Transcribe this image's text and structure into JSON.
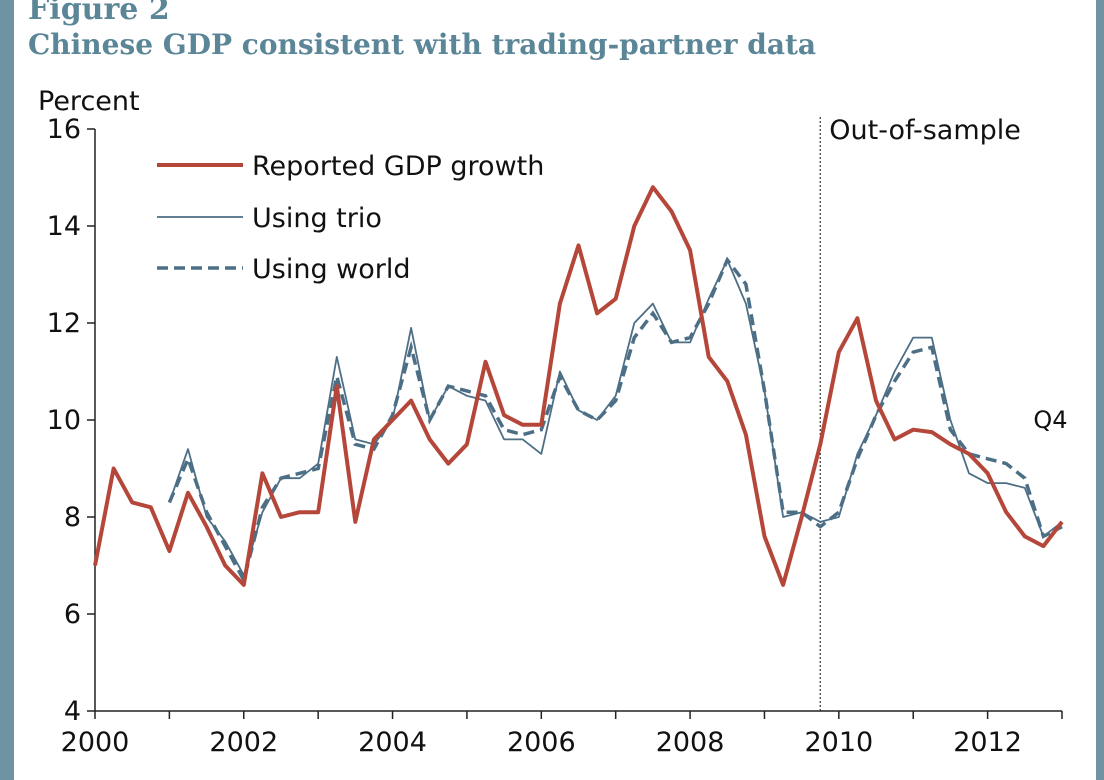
{
  "figure": {
    "label": "Figure 2",
    "title": "Chinese GDP consistent with trading-partner data"
  },
  "colors": {
    "frame": "#6f93a3",
    "title": "#5b8697",
    "reported": "#b5473a",
    "trio": "#4d6f86",
    "world": "#4d6f86"
  },
  "chart_data": {
    "type": "line",
    "title": "",
    "xlabel": "",
    "ylabel": "Percent",
    "ylim": [
      4,
      16
    ],
    "yticks": [
      4,
      6,
      8,
      10,
      12,
      14,
      16
    ],
    "xlim": [
      2000,
      2013
    ],
    "xticks": [
      2000,
      2002,
      2004,
      2006,
      2008,
      2010,
      2012
    ],
    "grid": false,
    "legend_position": "top-left",
    "annotations": [
      {
        "text": "Out-of-sample",
        "x": 2009.75
      },
      {
        "text": "Q4",
        "x": 2012.75,
        "y": 10
      }
    ],
    "out_of_sample_start": 2009.75,
    "series": [
      {
        "name": "Reported GDP growth",
        "style": "solid-thick",
        "x": [
          2000.0,
          2000.25,
          2000.5,
          2000.75,
          2001.0,
          2001.25,
          2001.5,
          2001.75,
          2002.0,
          2002.25,
          2002.5,
          2002.75,
          2003.0,
          2003.25,
          2003.5,
          2003.75,
          2004.0,
          2004.25,
          2004.5,
          2004.75,
          2005.0,
          2005.25,
          2005.5,
          2005.75,
          2006.0,
          2006.25,
          2006.5,
          2006.75,
          2007.0,
          2007.25,
          2007.5,
          2007.75,
          2008.0,
          2008.25,
          2008.5,
          2008.75,
          2009.0,
          2009.25,
          2009.5,
          2009.75,
          2010.0,
          2010.25,
          2010.5,
          2010.75,
          2011.0,
          2011.25,
          2011.5,
          2011.75,
          2012.0,
          2012.25,
          2012.5,
          2012.75,
          2013.0
        ],
        "values": [
          7.0,
          9.0,
          8.3,
          8.2,
          7.3,
          8.5,
          7.8,
          7.0,
          6.6,
          8.9,
          8.0,
          8.1,
          8.1,
          10.7,
          7.9,
          9.6,
          10.0,
          10.4,
          9.6,
          9.1,
          9.5,
          11.2,
          10.1,
          9.9,
          9.9,
          12.4,
          13.6,
          12.2,
          12.5,
          14.0,
          14.8,
          14.3,
          13.5,
          11.3,
          10.8,
          9.7,
          7.6,
          6.6,
          8.0,
          9.5,
          11.4,
          12.1,
          10.4,
          9.6,
          9.8,
          9.75,
          9.5,
          9.3,
          8.9,
          8.1,
          7.6,
          7.4,
          7.9
        ]
      },
      {
        "name": "Using trio",
        "style": "solid-thin",
        "x": [
          2001.0,
          2001.25,
          2001.5,
          2001.75,
          2002.0,
          2002.25,
          2002.5,
          2002.75,
          2003.0,
          2003.25,
          2003.5,
          2003.75,
          2004.0,
          2004.25,
          2004.5,
          2004.75,
          2005.0,
          2005.25,
          2005.5,
          2005.75,
          2006.0,
          2006.25,
          2006.5,
          2006.75,
          2007.0,
          2007.25,
          2007.5,
          2007.75,
          2008.0,
          2008.25,
          2008.5,
          2008.75,
          2009.0,
          2009.25,
          2009.5,
          2009.75,
          2010.0,
          2010.25,
          2010.5,
          2010.75,
          2011.0,
          2011.25,
          2011.5,
          2011.75,
          2012.0,
          2012.25,
          2012.5,
          2012.75,
          2013.0
        ],
        "values": [
          8.3,
          9.4,
          8.0,
          7.5,
          6.8,
          8.1,
          8.8,
          8.8,
          9.1,
          11.3,
          9.6,
          9.5,
          10.0,
          11.9,
          10.0,
          10.7,
          10.5,
          10.4,
          9.6,
          9.6,
          9.3,
          11.0,
          10.2,
          10.0,
          10.5,
          12.0,
          12.4,
          11.6,
          11.6,
          12.5,
          13.3,
          12.4,
          10.6,
          8.0,
          8.1,
          7.9,
          8.0,
          9.3,
          10.1,
          11.0,
          11.7,
          11.7,
          10.0,
          8.9,
          8.7,
          8.7,
          8.6,
          7.6,
          7.9
        ]
      },
      {
        "name": "Using world",
        "style": "dashed",
        "x": [
          2001.0,
          2001.25,
          2001.5,
          2001.75,
          2002.0,
          2002.25,
          2002.5,
          2002.75,
          2003.0,
          2003.25,
          2003.5,
          2003.75,
          2004.0,
          2004.25,
          2004.5,
          2004.75,
          2005.0,
          2005.25,
          2005.5,
          2005.75,
          2006.0,
          2006.25,
          2006.5,
          2006.75,
          2007.0,
          2007.25,
          2007.5,
          2007.75,
          2008.0,
          2008.25,
          2008.5,
          2008.75,
          2009.0,
          2009.25,
          2009.5,
          2009.75,
          2010.0,
          2010.25,
          2010.5,
          2010.75,
          2011.0,
          2011.25,
          2011.5,
          2011.75,
          2012.0,
          2012.25,
          2012.5,
          2012.75,
          2013.0
        ],
        "values": [
          8.3,
          9.2,
          8.1,
          7.4,
          6.7,
          8.2,
          8.8,
          8.9,
          9.0,
          10.9,
          9.5,
          9.4,
          10.1,
          11.5,
          10.0,
          10.7,
          10.6,
          10.5,
          9.8,
          9.7,
          9.8,
          10.9,
          10.2,
          10.0,
          10.4,
          11.7,
          12.2,
          11.6,
          11.7,
          12.4,
          13.3,
          12.8,
          10.6,
          8.1,
          8.1,
          7.8,
          8.1,
          9.2,
          10.1,
          10.8,
          11.4,
          11.5,
          9.8,
          9.3,
          9.2,
          9.1,
          8.8,
          7.6,
          7.8
        ]
      }
    ]
  }
}
